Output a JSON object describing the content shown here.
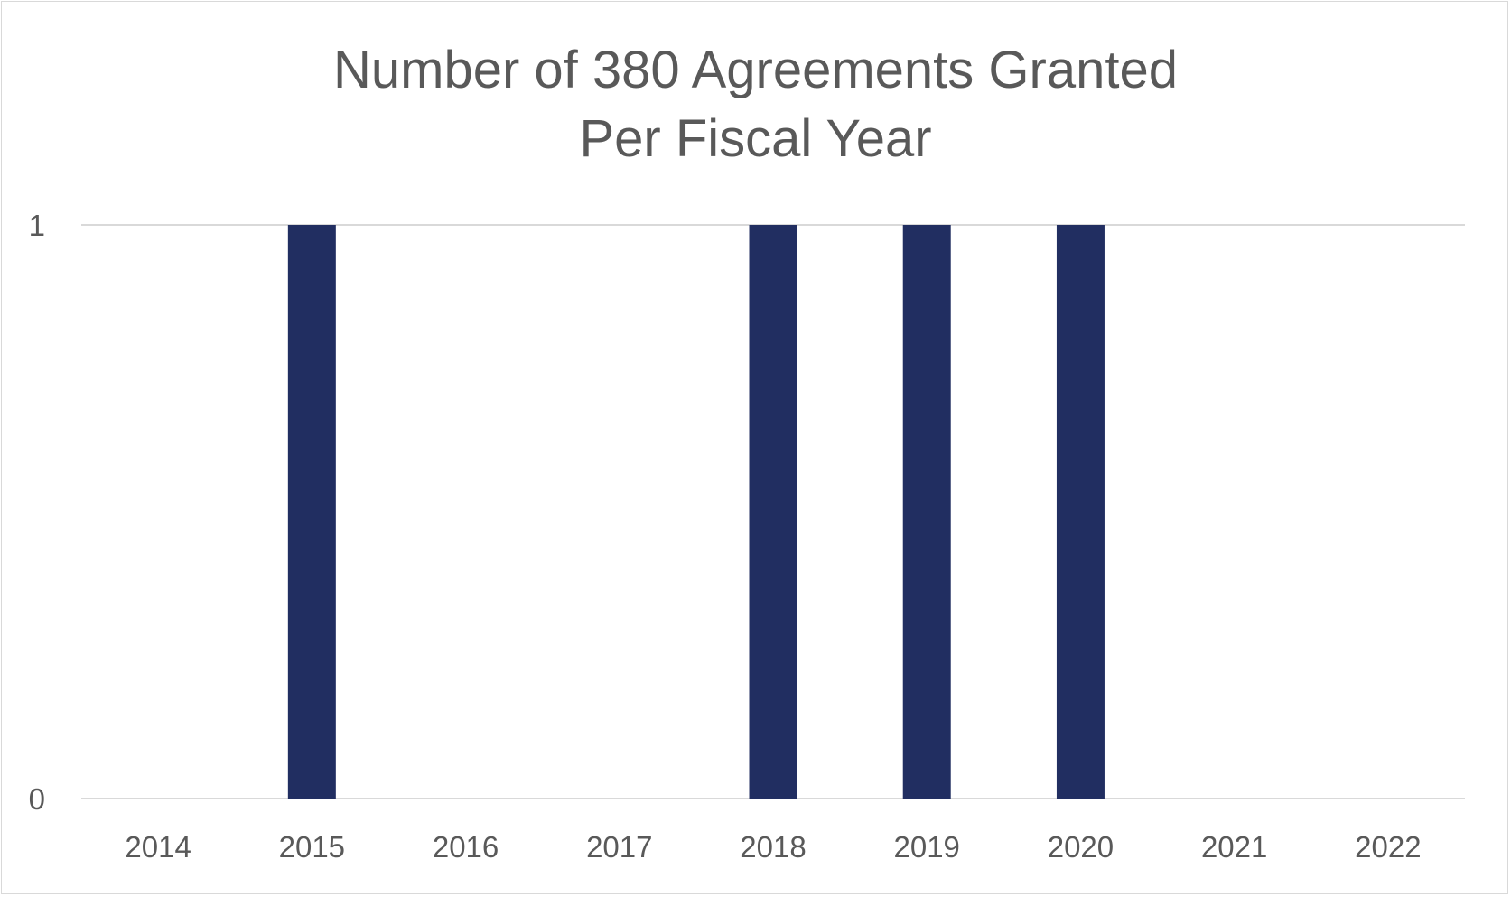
{
  "chart_data": {
    "type": "bar",
    "title_lines": [
      "Number of 380 Agreements Granted",
      "Per Fiscal Year"
    ],
    "categories": [
      "2014",
      "2015",
      "2016",
      "2017",
      "2018",
      "2019",
      "2020",
      "2021",
      "2022"
    ],
    "values": [
      0,
      1,
      0,
      0,
      1,
      1,
      1,
      0,
      0
    ],
    "ylim": [
      0,
      1
    ],
    "y_ticks": [
      "0",
      "1"
    ],
    "grid": true,
    "legend": "none",
    "colors": {
      "bar": "#212e61",
      "grid": "#d9d9d9",
      "text": "#595959"
    }
  }
}
